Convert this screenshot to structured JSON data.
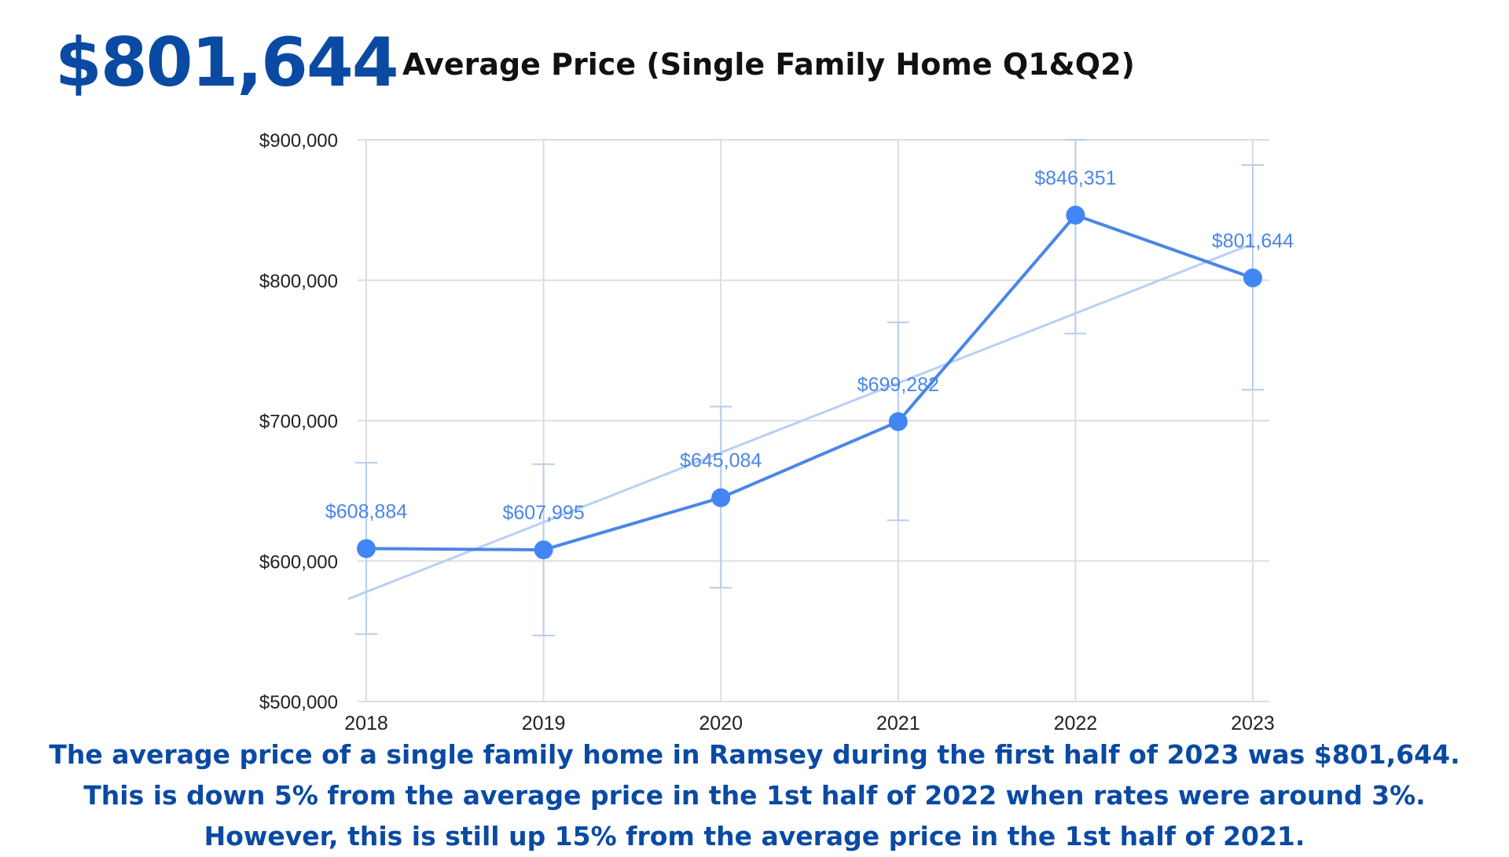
{
  "headline": "$801,644",
  "caption": {
    "lines": [
      "The average price of a single family home in Ramsey during the first half of 2023 was $801,644.",
      "This is down 5% from the average price in the 1st half of 2022 when rates were around 3%.",
      "However, this is still up 15% from the average price in the 1st half of 2021."
    ]
  },
  "colors": {
    "headline": "#0a4aa3",
    "series_line": "#4a86e8",
    "series_point": "#4285f4",
    "trendline": "#b7d0f5",
    "data_label": "#4a86e8",
    "error_bar": "#b8cdea",
    "grid": "#dddddd"
  },
  "chart_data": {
    "type": "line",
    "title": "Average Price (Single Family Home Q1&Q2)",
    "xlabel": "",
    "ylabel": "",
    "categories": [
      "2018",
      "2019",
      "2020",
      "2021",
      "2022",
      "2023"
    ],
    "series": [
      {
        "values": [
          608884,
          607995,
          645084,
          699282,
          846351,
          801644
        ],
        "data_labels": [
          "$608,884",
          "$607,995",
          "$645,084",
          "$699,282",
          "$846,351",
          "$801,644"
        ],
        "error_low": [
          548000,
          547000,
          581000,
          629000,
          762000,
          722000
        ],
        "error_high": [
          670000,
          669000,
          710000,
          770000,
          900000,
          882000
        ]
      }
    ],
    "trendline": {
      "type": "linear",
      "start": 573000,
      "end": 826000
    },
    "ylim": [
      500000,
      900000
    ],
    "yticks": [
      500000,
      600000,
      700000,
      800000,
      900000
    ],
    "ytick_labels": [
      "$500,000",
      "$600,000",
      "$700,000",
      "$800,000",
      "$900,000"
    ],
    "grid": true,
    "legend": "none"
  }
}
